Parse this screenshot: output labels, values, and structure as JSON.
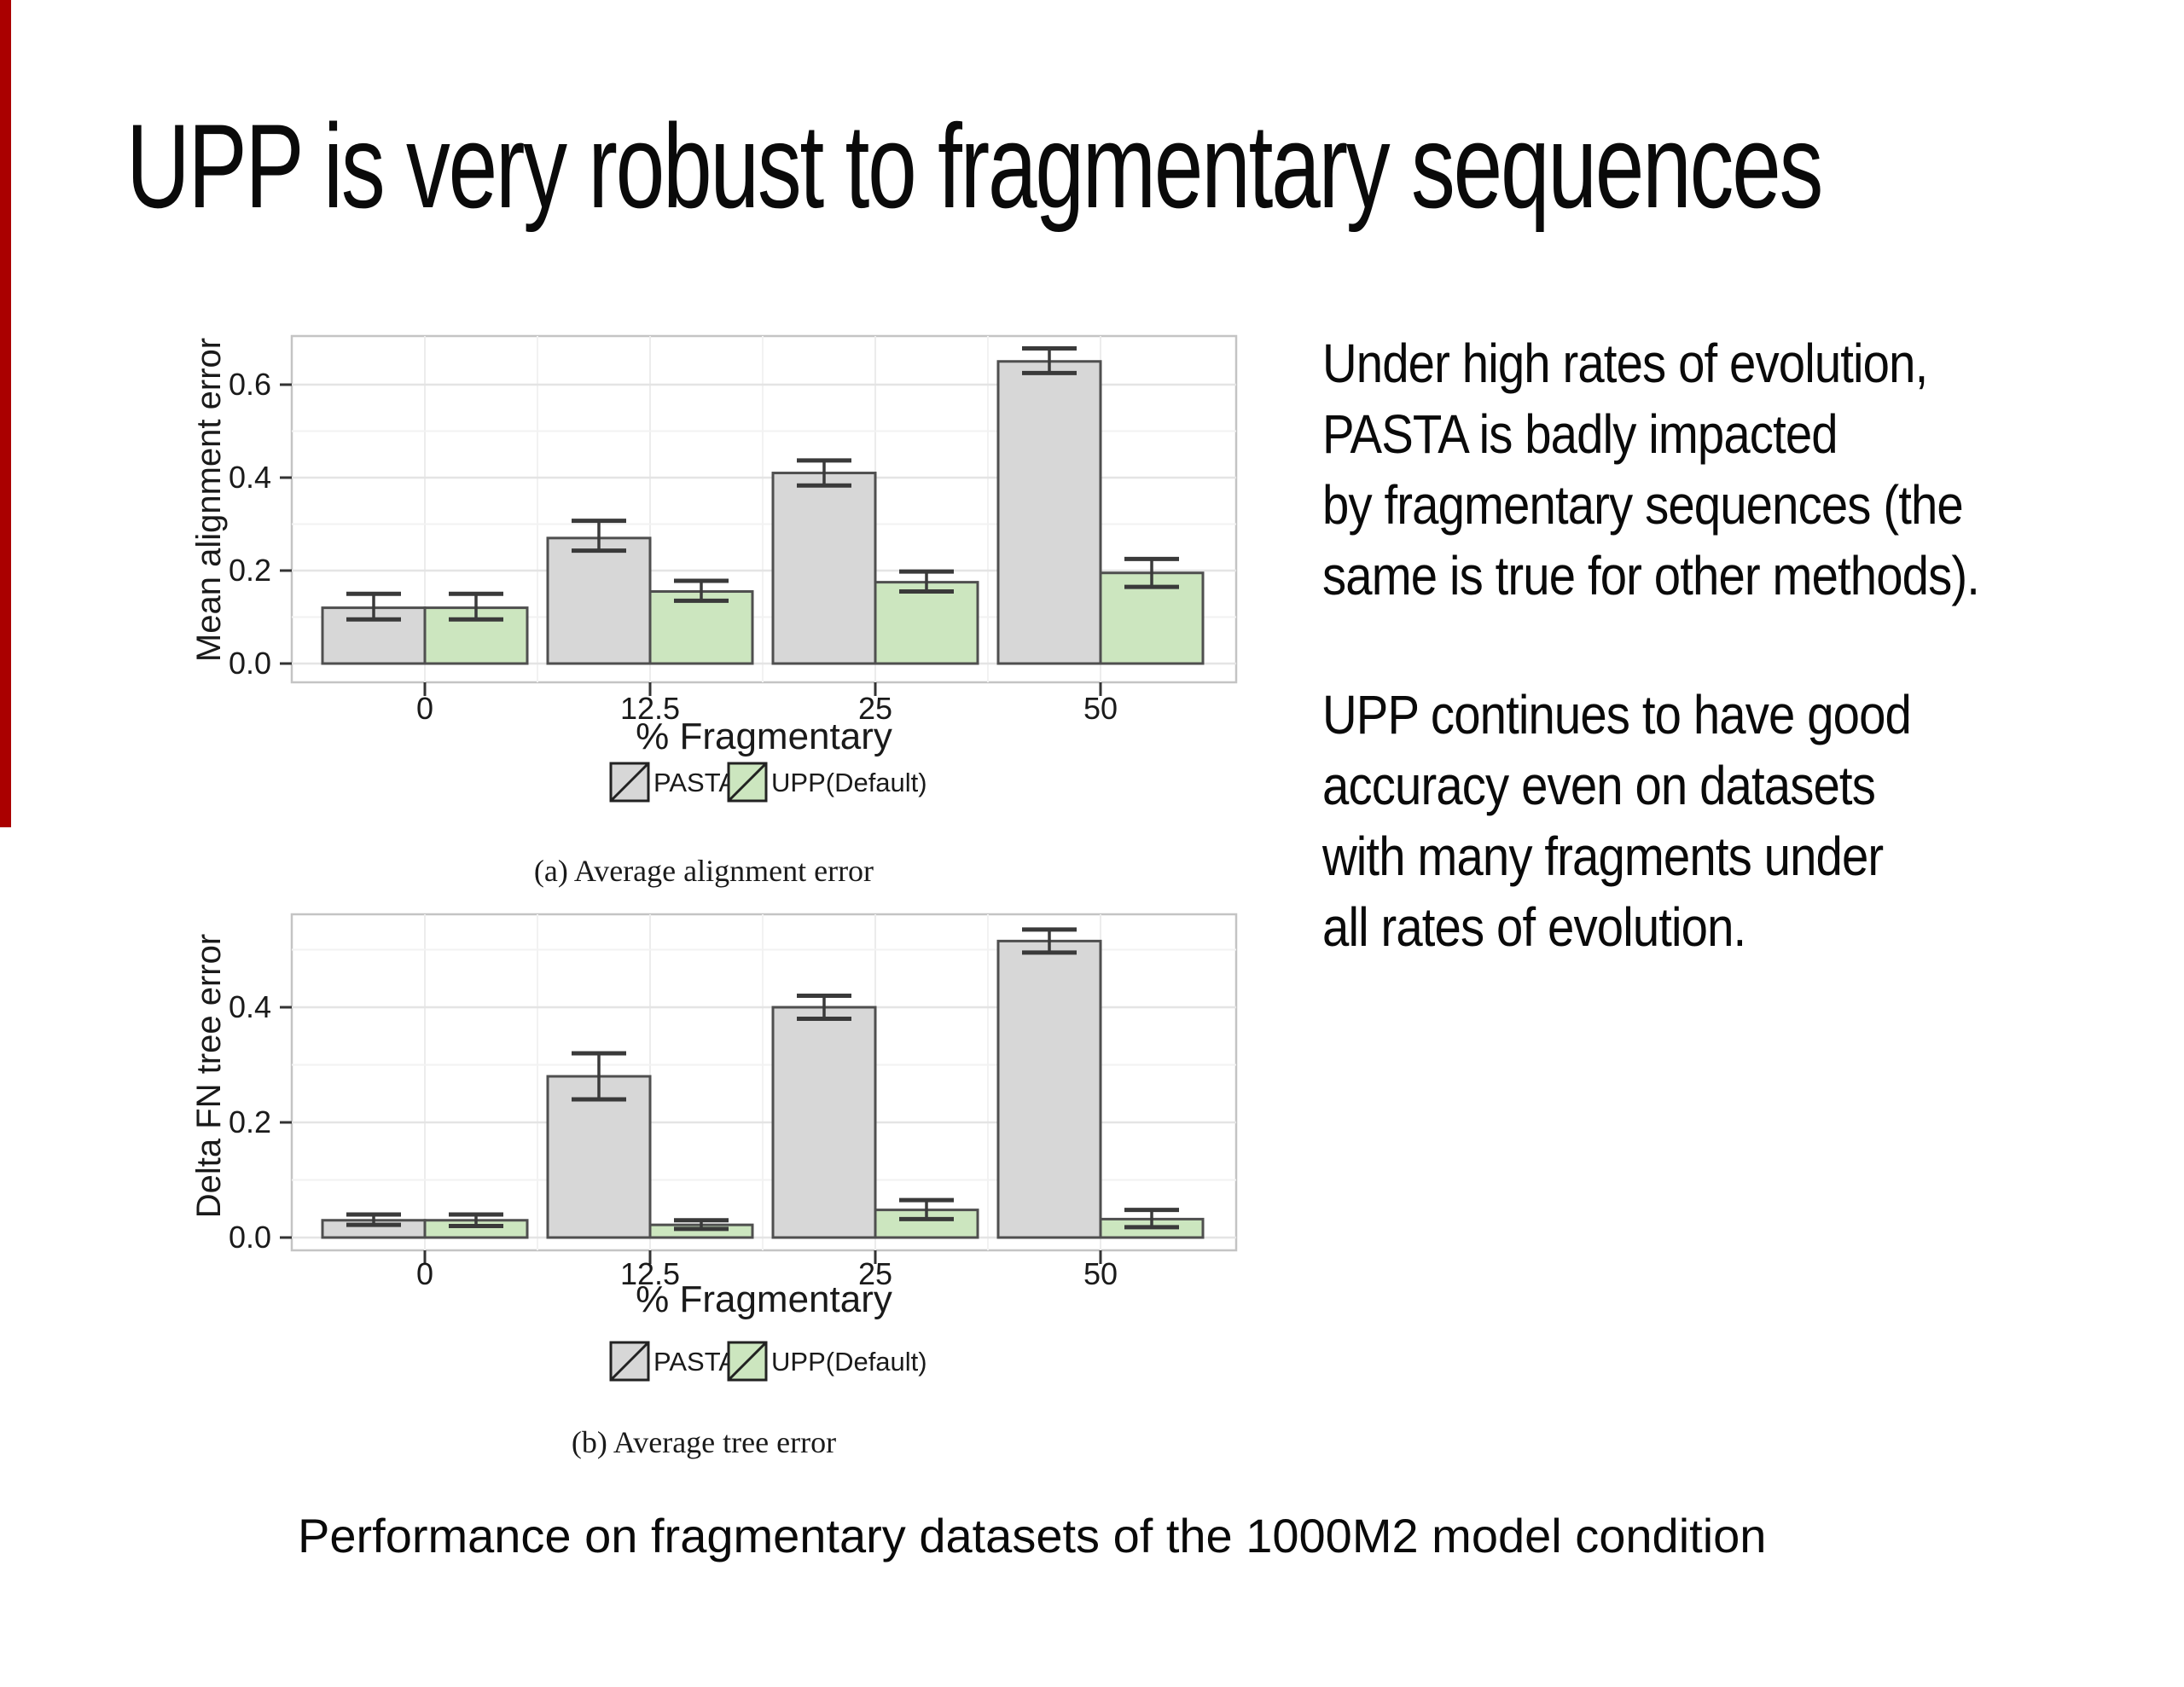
{
  "slide": {
    "title": "UPP is very robust to fragmentary sequences",
    "edge_marker_color": "#aa0000",
    "right_text": {
      "paragraph1_lines": [
        "Under high rates of evolution,",
        "PASTA is badly impacted",
        "by fragmentary sequences (the",
        "same is true for other methods)."
      ],
      "paragraph2_lines": [
        "UPP continues to have good",
        "accuracy even on datasets",
        "with many fragments under",
        "all rates of evolution."
      ]
    },
    "bottom_caption": "Performance on fragmentary datasets of the 1000M2 model condition"
  },
  "chart_data": [
    {
      "type": "bar",
      "panel_caption": "(a) Average alignment error",
      "xlabel": "% Fragmentary",
      "ylabel": "Mean alignment error",
      "categories": [
        "0",
        "12.5",
        "25",
        "50"
      ],
      "series": [
        {
          "name": "PASTA",
          "fill": "#d7d7d7",
          "values": [
            0.12,
            0.27,
            0.41,
            0.65
          ],
          "err_low": [
            0.095,
            0.243,
            0.383,
            0.625
          ],
          "err_high": [
            0.15,
            0.307,
            0.437,
            0.678
          ]
        },
        {
          "name": "UPP(Default)",
          "fill": "#cce6bf",
          "values": [
            0.12,
            0.155,
            0.175,
            0.195
          ],
          "err_low": [
            0.095,
            0.135,
            0.155,
            0.165
          ],
          "err_high": [
            0.15,
            0.178,
            0.198,
            0.225
          ]
        }
      ],
      "yticks": [
        0.0,
        0.2,
        0.4,
        0.6
      ],
      "ylim": [
        0,
        0.71
      ],
      "grid": true,
      "legend_position": "bottom"
    },
    {
      "type": "bar",
      "panel_caption": "(b) Average tree error",
      "xlabel": "% Fragmentary",
      "ylabel": "Delta FN tree error",
      "categories": [
        "0",
        "12.5",
        "25",
        "50"
      ],
      "series": [
        {
          "name": "PASTA",
          "fill": "#d7d7d7",
          "values": [
            0.03,
            0.28,
            0.4,
            0.515
          ],
          "err_low": [
            0.022,
            0.24,
            0.38,
            0.495
          ],
          "err_high": [
            0.04,
            0.32,
            0.42,
            0.535
          ]
        },
        {
          "name": "UPP(Default)",
          "fill": "#cce6bf",
          "values": [
            0.03,
            0.022,
            0.048,
            0.032
          ],
          "err_low": [
            0.02,
            0.015,
            0.032,
            0.018
          ],
          "err_high": [
            0.04,
            0.03,
            0.065,
            0.048
          ]
        }
      ],
      "yticks": [
        0.0,
        0.2,
        0.4
      ],
      "ylim": [
        0,
        0.565
      ],
      "grid": true,
      "legend_position": "bottom"
    }
  ],
  "chart_style": {
    "bar_stroke": "#4f4f4f",
    "error_color": "#3a3a3a",
    "grid_major": "#e4e4e4",
    "grid_minor": "#f2f2f2",
    "frame": "#c4c4c4",
    "tick": "#333333",
    "text": "#1a1a1a"
  }
}
